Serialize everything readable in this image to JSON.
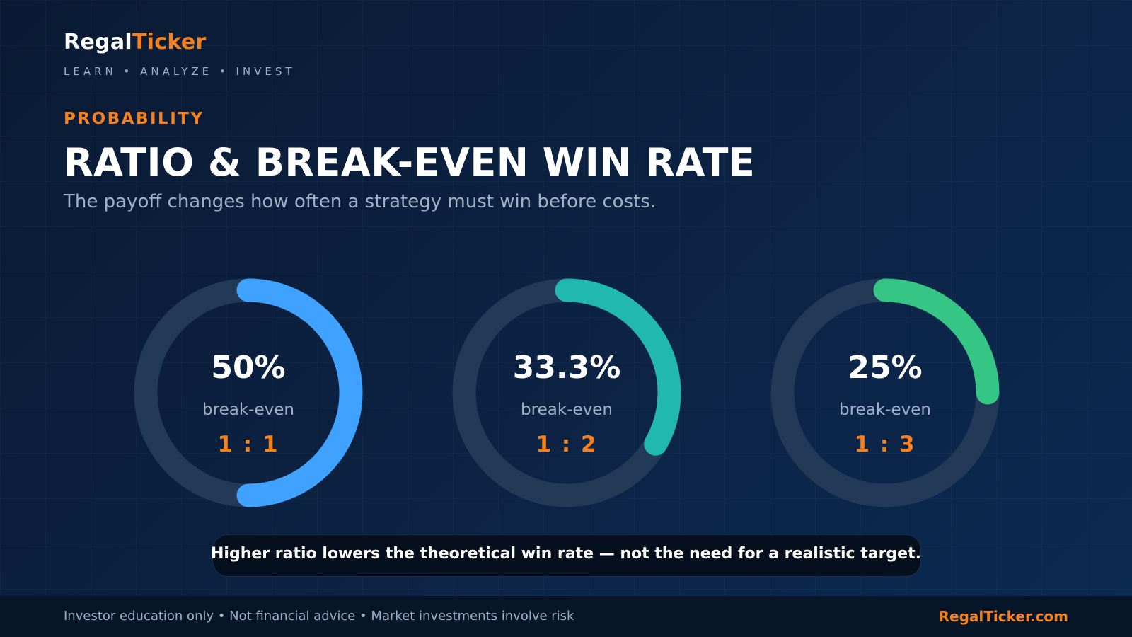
{
  "brand": {
    "name_part1": "Regal",
    "name_part2": "Ticker",
    "tagline": "LEARN • ANALYZE • INVEST"
  },
  "header": {
    "eyebrow": "PROBABILITY",
    "title": "RATIO & BREAK-EVEN WIN RATE",
    "subtitle": "The payoff changes how often a strategy must win before costs."
  },
  "gauges": [
    {
      "value": 50,
      "value_label": "50%",
      "label": "break-even",
      "ratio": "1 : 1",
      "color": "#3fa2ff"
    },
    {
      "value": 33.3,
      "value_label": "33.3%",
      "label": "break-even",
      "ratio": "1 : 2",
      "color": "#21b8b0"
    },
    {
      "value": 25,
      "value_label": "25%",
      "label": "break-even",
      "ratio": "1 : 3",
      "color": "#35c584"
    }
  ],
  "colors": {
    "accent": "#f5821f",
    "track": "#223a57",
    "muted_text": "#9fb1c9"
  },
  "callout": {
    "text": "Higher ratio lowers the theoretical win rate — not the need for a realistic target."
  },
  "footer": {
    "disclaimer": "Investor education only • Not financial advice • Market investments involve risk",
    "site": "RegalTicker.com"
  }
}
